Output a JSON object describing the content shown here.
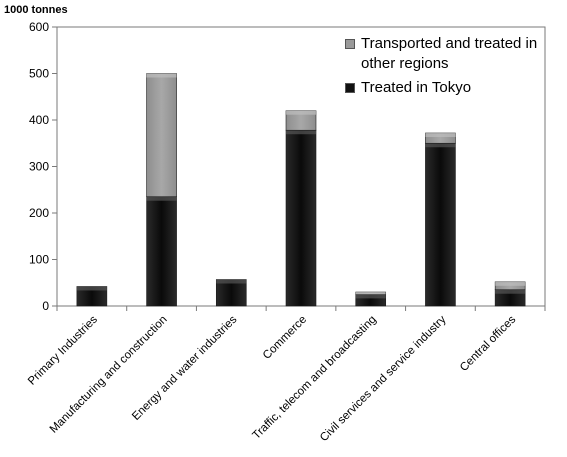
{
  "chart_data": {
    "type": "bar",
    "stacked": true,
    "title": "",
    "xlabel": "",
    "ylabel": "1000 tonnes",
    "ylim": [
      0,
      600
    ],
    "yticks": [
      0,
      100,
      200,
      300,
      400,
      500,
      600
    ],
    "grid": false,
    "legend_position": "top-right",
    "categories": [
      "Primary Industries",
      "Manufacturing and construction",
      "Energy and water industries",
      "Commerce",
      "Traffic, telecom and broadcasting",
      "Civil services and service industry",
      "Central offices"
    ],
    "series": [
      {
        "name": "Treated in Tokyo",
        "color": "#111111",
        "values": [
          42,
          235,
          57,
          378,
          25,
          350,
          35
        ]
      },
      {
        "name": "Transported and treated in other regions",
        "color": "#9a9a9a",
        "values": [
          0,
          265,
          0,
          42,
          5,
          22,
          17
        ]
      }
    ]
  }
}
